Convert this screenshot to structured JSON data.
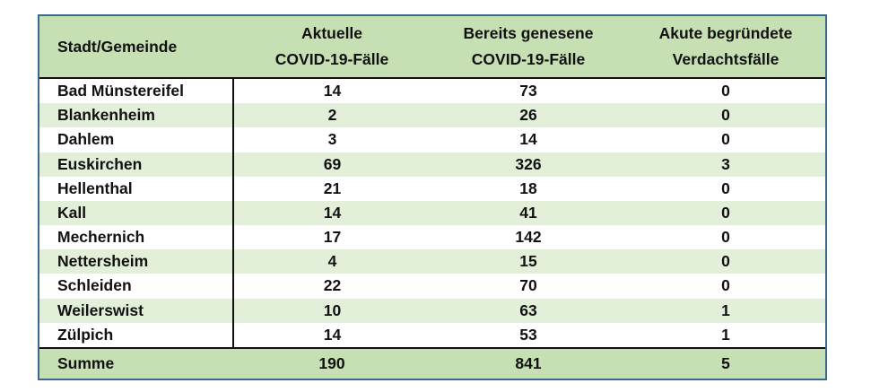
{
  "header": {
    "col0": "Stadt/Gemeinde",
    "col1": [
      "Aktuelle",
      "COVID-19-Fälle"
    ],
    "col2": [
      "Bereits genesene",
      "COVID-19-Fälle"
    ],
    "col3": [
      "Akute begründete",
      "Verdachtsfälle"
    ]
  },
  "rows": [
    {
      "name": "Bad Münstereifel",
      "aktuell": "14",
      "genesen": "73",
      "verdacht": "0"
    },
    {
      "name": "Blankenheim",
      "aktuell": "2",
      "genesen": "26",
      "verdacht": "0"
    },
    {
      "name": "Dahlem",
      "aktuell": "3",
      "genesen": "14",
      "verdacht": "0"
    },
    {
      "name": "Euskirchen",
      "aktuell": "69",
      "genesen": "326",
      "verdacht": "3"
    },
    {
      "name": "Hellenthal",
      "aktuell": "21",
      "genesen": "18",
      "verdacht": "0"
    },
    {
      "name": "Kall",
      "aktuell": "14",
      "genesen": "41",
      "verdacht": "0"
    },
    {
      "name": "Mechernich",
      "aktuell": "17",
      "genesen": "142",
      "verdacht": "0"
    },
    {
      "name": "Nettersheim",
      "aktuell": "4",
      "genesen": "15",
      "verdacht": "0"
    },
    {
      "name": "Schleiden",
      "aktuell": "22",
      "genesen": "70",
      "verdacht": "0"
    },
    {
      "name": "Weilerswist",
      "aktuell": "10",
      "genesen": "63",
      "verdacht": "1"
    },
    {
      "name": "Zülpich",
      "aktuell": "14",
      "genesen": "53",
      "verdacht": "1"
    }
  ],
  "footer": {
    "label": "Summe",
    "aktuell": "190",
    "genesen": "841",
    "verdacht": "5"
  },
  "colors": {
    "header_bg": "#c6e0b4",
    "stripe_bg": "#e2efd9",
    "frame_border": "#3a6b8f"
  }
}
